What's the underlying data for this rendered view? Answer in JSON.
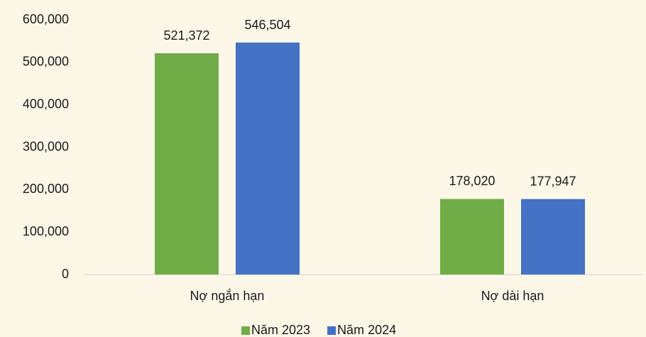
{
  "chart_data": {
    "type": "bar",
    "categories": [
      "Nợ ngắn hạn",
      "Nợ dài hạn"
    ],
    "series": [
      {
        "name": "Năm 2023",
        "color": "#70ad47",
        "values": [
          521372,
          178020
        ],
        "value_labels": [
          "521,372",
          "178,020"
        ]
      },
      {
        "name": "Năm 2024",
        "color": "#4472c4",
        "values": [
          546504,
          177947
        ],
        "value_labels": [
          "546,504",
          "177,947"
        ]
      }
    ],
    "ylim": [
      0,
      600000
    ],
    "yticks": [
      0,
      {
        "value": 100000,
        "label": "100,000"
      },
      {
        "value": 200000,
        "label": "200,000"
      },
      {
        "value": 300000,
        "label": "300,000"
      },
      {
        "value": 400000,
        "label": "400,000"
      },
      {
        "value": 500000,
        "label": "500,000"
      },
      {
        "value": 600000,
        "label": "600,000"
      }
    ],
    "grid": false,
    "legend": "bottom"
  }
}
